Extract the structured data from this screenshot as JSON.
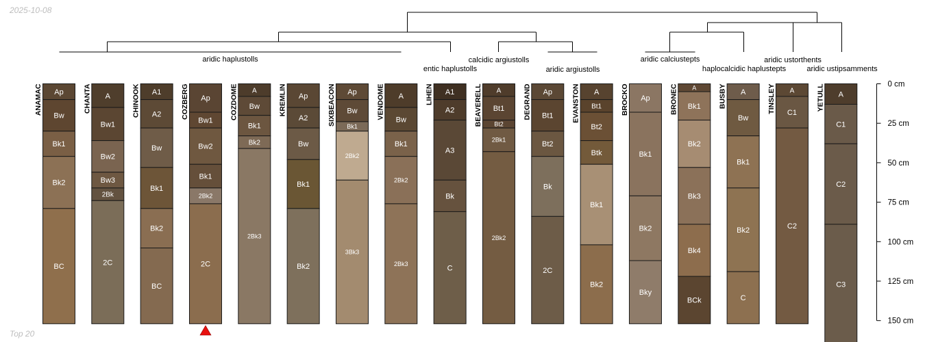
{
  "date_stamp": "2025-10-08",
  "footer_label": "Top 20",
  "marked_profile": "COZBERG",
  "depth_scale": {
    "unit": "cm",
    "max_depth": 150,
    "ticks": [
      {
        "value": 0,
        "label": "0 cm"
      },
      {
        "value": 25,
        "label": "25 cm"
      },
      {
        "value": 50,
        "label": "50 cm"
      },
      {
        "value": 75,
        "label": "75 cm"
      },
      {
        "value": 100,
        "label": "100 cm"
      },
      {
        "value": 125,
        "label": "125 cm"
      },
      {
        "value": 150,
        "label": "150 cm"
      }
    ]
  },
  "dendrogram": {
    "taxa": [
      {
        "label": "aridic haplustolls"
      },
      {
        "label": "entic haplustolls"
      },
      {
        "label": "calcidic argiustolls"
      },
      {
        "label": "aridic argiustolls"
      },
      {
        "label": "aridic calciustepts"
      },
      {
        "label": "haplocalcidic haplustepts"
      },
      {
        "label": "aridic ustorthents"
      },
      {
        "label": "aridic ustipsamments"
      }
    ]
  },
  "profiles": [
    {
      "name": "ANAMAC",
      "horizons": [
        {
          "name": "Ap",
          "top": 0,
          "bottom": 10,
          "color": "#5b4733"
        },
        {
          "name": "Bw",
          "top": 10,
          "bottom": 30,
          "color": "#5e4630"
        },
        {
          "name": "Bk1",
          "top": 30,
          "bottom": 46,
          "color": "#7a5f45"
        },
        {
          "name": "Bk2",
          "top": 46,
          "bottom": 79,
          "color": "#8c7155"
        },
        {
          "name": "BC",
          "top": 79,
          "bottom": 152,
          "color": "#8f6f4c"
        }
      ]
    },
    {
      "name": "CHANTA",
      "horizons": [
        {
          "name": "A",
          "top": 0,
          "bottom": 15,
          "color": "#4f3e2c"
        },
        {
          "name": "Bw1",
          "top": 15,
          "bottom": 36,
          "color": "#5b4632"
        },
        {
          "name": "Bw2",
          "top": 36,
          "bottom": 56,
          "color": "#7a6450"
        },
        {
          "name": "Bw3",
          "top": 56,
          "bottom": 66,
          "color": "#6e5842"
        },
        {
          "name": "2Bk",
          "top": 66,
          "bottom": 74,
          "color": "#635240"
        },
        {
          "name": "2C",
          "top": 74,
          "bottom": 152,
          "color": "#7b6d58"
        }
      ]
    },
    {
      "name": "CHINOOK",
      "horizons": [
        {
          "name": "A1",
          "top": 0,
          "bottom": 10,
          "color": "#4e3d2b"
        },
        {
          "name": "A2",
          "top": 10,
          "bottom": 28,
          "color": "#5d4a36"
        },
        {
          "name": "Bw",
          "top": 28,
          "bottom": 53,
          "color": "#6f5c48"
        },
        {
          "name": "Bk1",
          "top": 53,
          "bottom": 79,
          "color": "#6d5538"
        },
        {
          "name": "Bk2",
          "top": 79,
          "bottom": 104,
          "color": "#8a6e52"
        },
        {
          "name": "BC",
          "top": 104,
          "bottom": 152,
          "color": "#846a50"
        }
      ]
    },
    {
      "name": "COZBERG",
      "horizons": [
        {
          "name": "Ap",
          "top": 0,
          "bottom": 18,
          "color": "#5a4533"
        },
        {
          "name": "Bw1",
          "top": 18,
          "bottom": 28,
          "color": "#5f4732"
        },
        {
          "name": "Bw2",
          "top": 28,
          "bottom": 51,
          "color": "#6f5840"
        },
        {
          "name": "Bk1",
          "top": 51,
          "bottom": 66,
          "color": "#654f3a"
        },
        {
          "name": "2Bk2",
          "top": 66,
          "bottom": 76,
          "color": "#8a7868"
        },
        {
          "name": "2C",
          "top": 76,
          "bottom": 152,
          "color": "#8b6d4e"
        }
      ]
    },
    {
      "name": "COZDOME",
      "horizons": [
        {
          "name": "A",
          "top": 0,
          "bottom": 8,
          "color": "#4d3c2b"
        },
        {
          "name": "Bw",
          "top": 8,
          "bottom": 20,
          "color": "#5e4a37"
        },
        {
          "name": "Bk1",
          "top": 20,
          "bottom": 33,
          "color": "#6c5640"
        },
        {
          "name": "Bk2",
          "top": 33,
          "bottom": 41,
          "color": "#7e6a56"
        },
        {
          "name": "2Bk3",
          "top": 41,
          "bottom": 152,
          "color": "#8a7864"
        }
      ]
    },
    {
      "name": "KREMLIN",
      "horizons": [
        {
          "name": "Ap",
          "top": 0,
          "bottom": 15,
          "color": "#5a4734"
        },
        {
          "name": "A2",
          "top": 15,
          "bottom": 28,
          "color": "#5b4a37"
        },
        {
          "name": "Bw",
          "top": 28,
          "bottom": 48,
          "color": "#6c5a46"
        },
        {
          "name": "Bk1",
          "top": 48,
          "bottom": 79,
          "color": "#6a5634"
        },
        {
          "name": "Bk2",
          "top": 79,
          "bottom": 152,
          "color": "#7e705c"
        }
      ]
    },
    {
      "name": "SIXBEACON",
      "horizons": [
        {
          "name": "Ap",
          "top": 0,
          "bottom": 10,
          "color": "#5e4a36"
        },
        {
          "name": "Bw",
          "top": 10,
          "bottom": 24,
          "color": "#5e4a37"
        },
        {
          "name": "Bk1",
          "top": 24,
          "bottom": 30,
          "color": "#7b6a58"
        },
        {
          "name": "2Bk2",
          "top": 30,
          "bottom": 61,
          "color": "#bfaa90"
        },
        {
          "name": "3Bk3",
          "top": 61,
          "bottom": 152,
          "color": "#a38b6f"
        }
      ]
    },
    {
      "name": "VENDOME",
      "horizons": [
        {
          "name": "A",
          "top": 0,
          "bottom": 15,
          "color": "#4e3c2a"
        },
        {
          "name": "Bw",
          "top": 15,
          "bottom": 30,
          "color": "#5b4833"
        },
        {
          "name": "Bk1",
          "top": 30,
          "bottom": 46,
          "color": "#7a624a"
        },
        {
          "name": "2Bk2",
          "top": 46,
          "bottom": 76,
          "color": "#8a7058"
        },
        {
          "name": "2Bk3",
          "top": 76,
          "bottom": 152,
          "color": "#8e7358"
        }
      ]
    },
    {
      "name": "LIHEN",
      "horizons": [
        {
          "name": "A1",
          "top": 0,
          "bottom": 10,
          "color": "#3f3022"
        },
        {
          "name": "A2",
          "top": 10,
          "bottom": 23,
          "color": "#4e3c2b"
        },
        {
          "name": "A3",
          "top": 23,
          "bottom": 61,
          "color": "#5a4836"
        },
        {
          "name": "Bk",
          "top": 61,
          "bottom": 81,
          "color": "#66523e"
        },
        {
          "name": "C",
          "top": 81,
          "bottom": 152,
          "color": "#6e5e49"
        }
      ]
    },
    {
      "name": "BEAVERELL",
      "horizons": [
        {
          "name": "A",
          "top": 0,
          "bottom": 8,
          "color": "#4f3c2b"
        },
        {
          "name": "Bt1",
          "top": 8,
          "bottom": 23,
          "color": "#5b4532"
        },
        {
          "name": "Bt2",
          "top": 23,
          "bottom": 28,
          "color": "#5b4532"
        },
        {
          "name": "2Bk1",
          "top": 28,
          "bottom": 43,
          "color": "#705a43"
        },
        {
          "name": "2Bk2",
          "top": 43,
          "bottom": 152,
          "color": "#745c42"
        }
      ]
    },
    {
      "name": "DEGRAND",
      "horizons": [
        {
          "name": "Ap",
          "top": 0,
          "bottom": 10,
          "color": "#5b4835"
        },
        {
          "name": "Bt1",
          "top": 10,
          "bottom": 30,
          "color": "#5b4530"
        },
        {
          "name": "Bt2",
          "top": 30,
          "bottom": 46,
          "color": "#6b5741"
        },
        {
          "name": "Bk",
          "top": 46,
          "bottom": 84,
          "color": "#7d6f5c"
        },
        {
          "name": "2C",
          "top": 84,
          "bottom": 152,
          "color": "#6d5c48"
        }
      ]
    },
    {
      "name": "EVANSTON",
      "horizons": [
        {
          "name": "A",
          "top": 0,
          "bottom": 10,
          "color": "#57432f"
        },
        {
          "name": "Bt1",
          "top": 10,
          "bottom": 18,
          "color": "#5a432c"
        },
        {
          "name": "Bt2",
          "top": 18,
          "bottom": 36,
          "color": "#6b5035"
        },
        {
          "name": "Btk",
          "top": 36,
          "bottom": 51,
          "color": "#735a3a"
        },
        {
          "name": "Bk1",
          "top": 51,
          "bottom": 102,
          "color": "#a89075"
        },
        {
          "name": "Bk2",
          "top": 102,
          "bottom": 152,
          "color": "#8c6d4c"
        }
      ]
    },
    {
      "name": "BROCKO",
      "horizons": [
        {
          "name": "Ap",
          "top": 0,
          "bottom": 18,
          "color": "#8b7663"
        },
        {
          "name": "Bk1",
          "top": 18,
          "bottom": 71,
          "color": "#8a735e"
        },
        {
          "name": "Bk2",
          "top": 71,
          "bottom": 112,
          "color": "#8e7862"
        },
        {
          "name": "Bky",
          "top": 112,
          "bottom": 152,
          "color": "#8f7c6a"
        }
      ]
    },
    {
      "name": "BRONEC",
      "horizons": [
        {
          "name": "A",
          "top": 0,
          "bottom": 5,
          "color": "#5f4834"
        },
        {
          "name": "Bk1",
          "top": 5,
          "bottom": 23,
          "color": "#8e735a"
        },
        {
          "name": "Bk2",
          "top": 23,
          "bottom": 53,
          "color": "#a68c72"
        },
        {
          "name": "Bk3",
          "top": 53,
          "bottom": 89,
          "color": "#8b7159"
        },
        {
          "name": "Bk4",
          "top": 89,
          "bottom": 122,
          "color": "#8d6d4d"
        },
        {
          "name": "BCk",
          "top": 122,
          "bottom": 152,
          "color": "#5b4530"
        }
      ]
    },
    {
      "name": "BUSBY",
      "horizons": [
        {
          "name": "A",
          "top": 0,
          "bottom": 10,
          "color": "#6e5c4b"
        },
        {
          "name": "Bw",
          "top": 10,
          "bottom": 33,
          "color": "#6f5a41"
        },
        {
          "name": "Bk1",
          "top": 33,
          "bottom": 66,
          "color": "#8e7253"
        },
        {
          "name": "Bk2",
          "top": 66,
          "bottom": 119,
          "color": "#8e7352"
        },
        {
          "name": "C",
          "top": 119,
          "bottom": 152,
          "color": "#8d7050"
        }
      ]
    },
    {
      "name": "TINSLEY",
      "horizons": [
        {
          "name": "A",
          "top": 0,
          "bottom": 8,
          "color": "#5c4834"
        },
        {
          "name": "C1",
          "top": 8,
          "bottom": 28,
          "color": "#6a5743"
        },
        {
          "name": "C2",
          "top": 28,
          "bottom": 152,
          "color": "#735a42"
        }
      ]
    },
    {
      "name": "YETULL",
      "horizons": [
        {
          "name": "A",
          "top": 0,
          "bottom": 13,
          "color": "#4e3d2c"
        },
        {
          "name": "C1",
          "top": 13,
          "bottom": 38,
          "color": "#6a5a49"
        },
        {
          "name": "C2",
          "top": 38,
          "bottom": 89,
          "color": "#6b5b4a"
        },
        {
          "name": "C3",
          "top": 89,
          "bottom": 165,
          "color": "#6b5c4b"
        }
      ]
    }
  ]
}
